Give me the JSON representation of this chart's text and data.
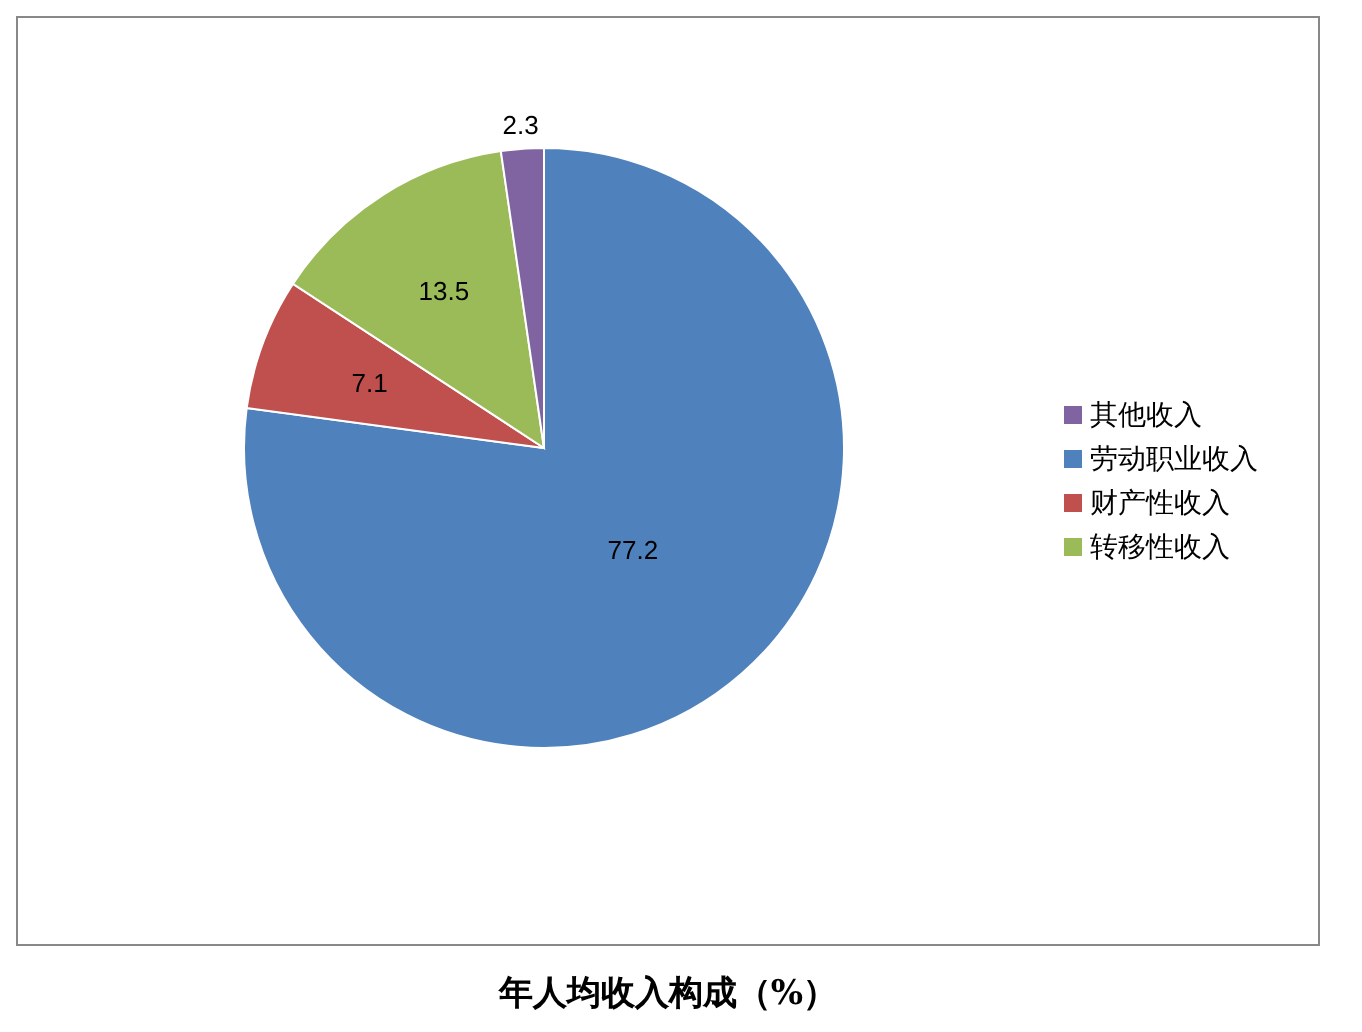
{
  "chart_data": {
    "type": "pie",
    "title": "年人均收入构成（%）",
    "categories": [
      "劳动职业收入",
      "财产性收入",
      "转移性收入",
      "其他收入"
    ],
    "values": [
      77.2,
      7.1,
      13.5,
      2.3
    ],
    "colors": [
      "#4f81bd",
      "#c0504d",
      "#9bbb59",
      "#8064a2"
    ],
    "data_labels": true,
    "legend": "right"
  }
}
